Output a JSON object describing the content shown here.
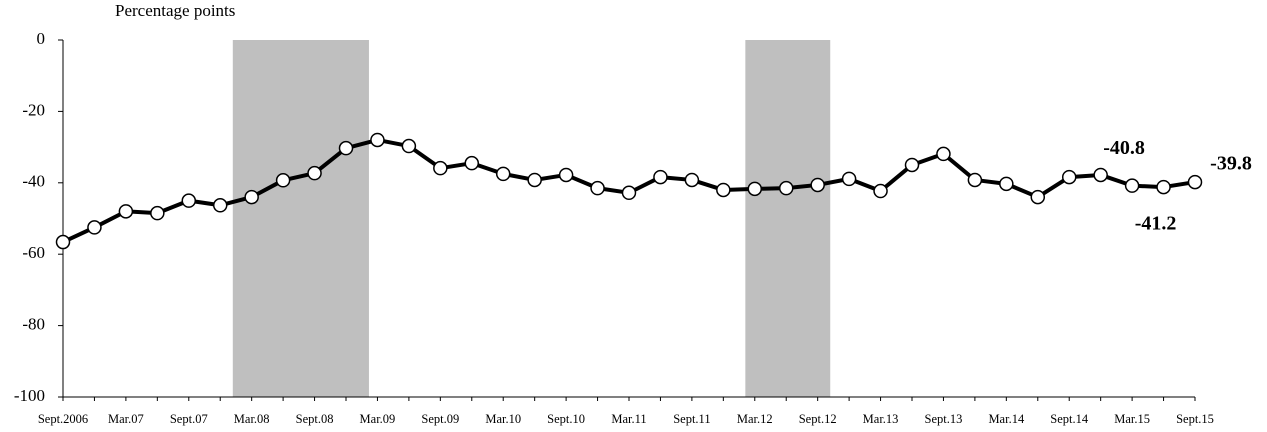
{
  "chart_data": {
    "type": "line",
    "y_label": "Percentage points",
    "categories": [
      "Sept.2006",
      null,
      "Mar.07",
      null,
      "Sept.07",
      null,
      "Mar.08",
      null,
      "Sept.08",
      null,
      "Mar.09",
      null,
      "Sept.09",
      null,
      "Mar.10",
      null,
      "Sept.10",
      null,
      "Mar.11",
      null,
      "Sept.11",
      null,
      "Mar.12",
      null,
      "Sept.12",
      null,
      "Mar.13",
      null,
      "Sept.13",
      null,
      "Mar.14",
      null,
      "Sept.14",
      null,
      "Mar.15",
      null,
      "Sept.15"
    ],
    "values": [
      -56.6,
      -52.5,
      -48,
      -48.5,
      -45,
      -46.3,
      -44,
      -39.3,
      -37.3,
      -30.3,
      -28,
      -29.7,
      -35.9,
      -34.5,
      -37.5,
      -39.2,
      -37.8,
      -41.5,
      -42.8,
      -38.4,
      -39.2,
      -42,
      -41.7,
      -41.5,
      -40.6,
      -38.9,
      -42.3,
      -35,
      -31.9,
      -39.2,
      -40.3,
      -44,
      -38.4,
      -37.8,
      -40.8,
      -41.2,
      -39.8
    ],
    "value_labels": [
      null,
      null,
      null,
      null,
      null,
      null,
      null,
      null,
      null,
      null,
      null,
      null,
      null,
      null,
      null,
      null,
      null,
      null,
      null,
      null,
      null,
      null,
      null,
      null,
      null,
      null,
      null,
      null,
      null,
      null,
      null,
      null,
      null,
      null,
      "-40.8",
      "-41.2",
      "-39.8"
    ],
    "color": "#000000",
    "shaded_ranges": [
      [
        5.4,
        9.73
      ],
      [
        21.7,
        24.4
      ]
    ],
    "shade_color": "#bfbfbf",
    "ylim": [
      -100,
      0
    ],
    "yticks": [
      0,
      -20,
      -40,
      -60,
      -80,
      -100
    ],
    "grid": false
  }
}
